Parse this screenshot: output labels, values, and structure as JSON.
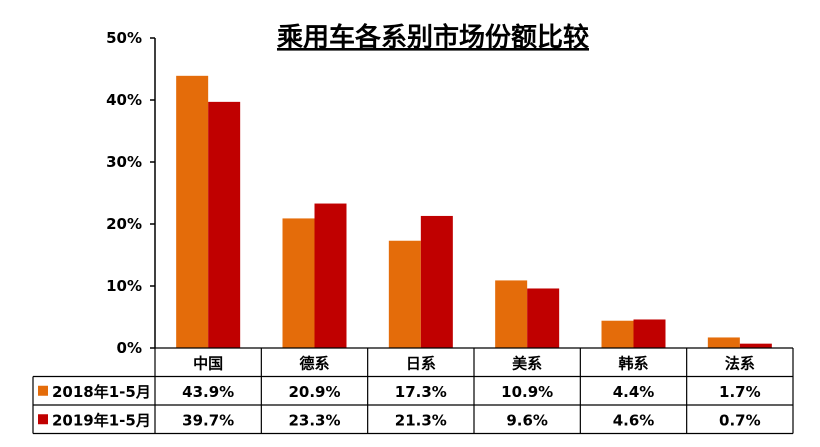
{
  "chart_data": {
    "type": "bar",
    "title": "乘用车各系别市场份额比较",
    "categories": [
      "中国",
      "德系",
      "日系",
      "美系",
      "韩系",
      "法系"
    ],
    "series": [
      {
        "name": "2018年1-5月",
        "color": "#E46C0A",
        "values": [
          43.9,
          20.9,
          17.3,
          10.9,
          4.4,
          1.7
        ],
        "labels": [
          "43.9%",
          "20.9%",
          "17.3%",
          "10.9%",
          "4.4%",
          "1.7%"
        ]
      },
      {
        "name": "2019年1-5月",
        "color": "#C00000",
        "values": [
          39.7,
          23.3,
          21.3,
          9.6,
          4.6,
          0.7
        ],
        "labels": [
          "39.7%",
          "23.3%",
          "21.3%",
          "9.6%",
          "4.6%",
          "0.7%"
        ]
      }
    ],
    "y_ticks": [
      "0%",
      "10%",
      "20%",
      "30%",
      "40%",
      "50%"
    ],
    "ylim": [
      0,
      50
    ],
    "xlabel": "",
    "ylabel": "",
    "grid": false,
    "legend": "data-table"
  }
}
